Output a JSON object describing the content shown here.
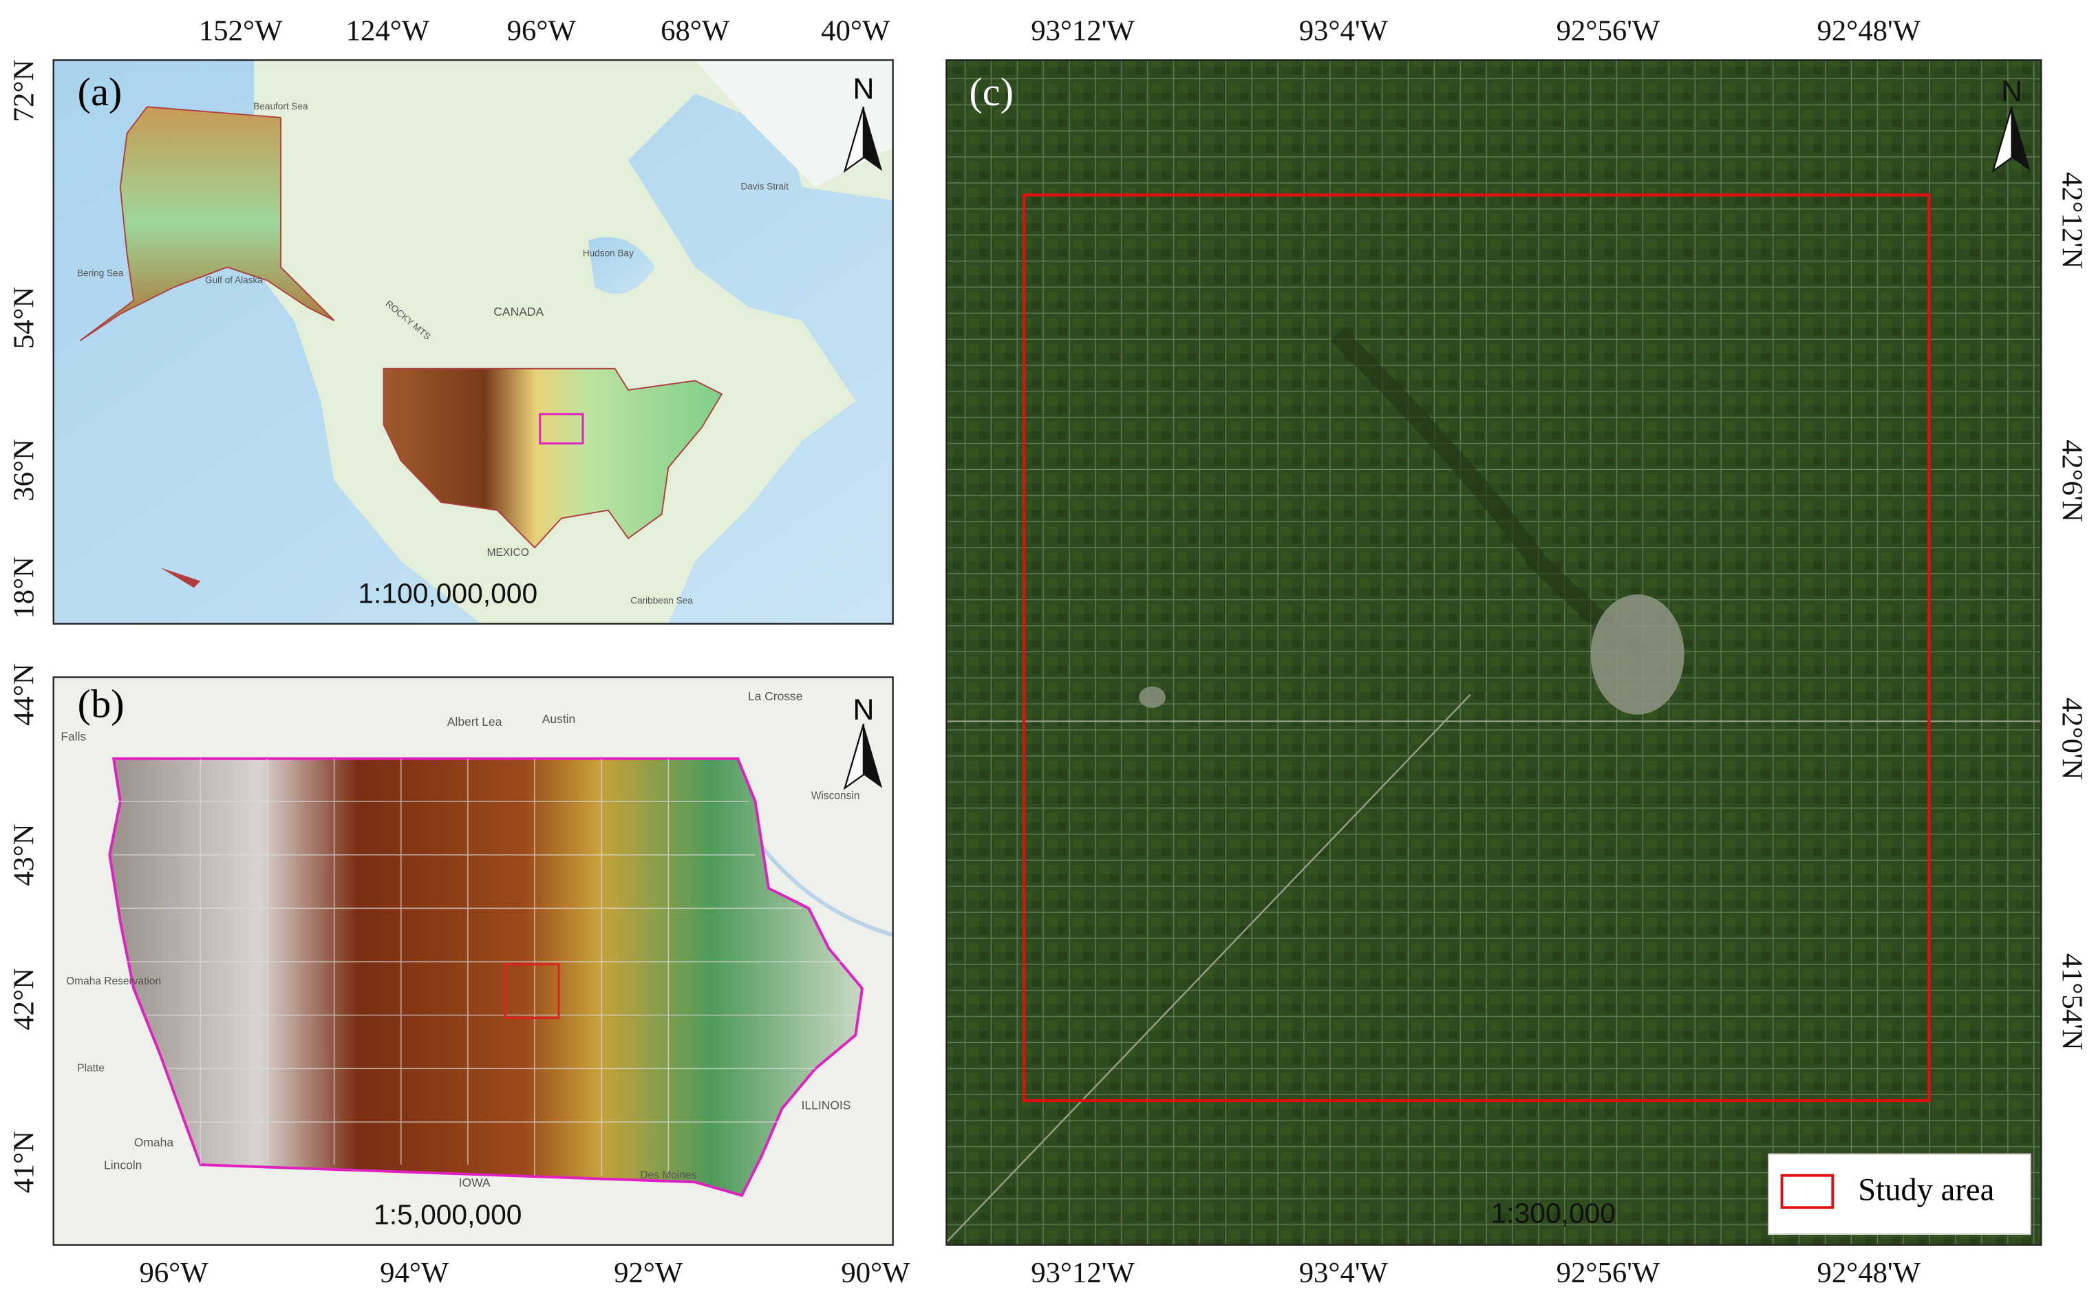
{
  "panels": [
    {
      "label": "(a)",
      "north": "N",
      "scale": "1:100,000,000",
      "top_ticks": [
        "152°W",
        "124°W",
        "96°W",
        "68°W",
        "40°W"
      ],
      "left_ticks": [
        "72°N",
        "54°N",
        "36°N",
        "18°N"
      ],
      "places": [
        "Beaufort Sea",
        "Bering Sea",
        "Gulf of Alaska",
        "CANADA",
        "ROCKY MTS",
        "Hudson Bay",
        "Davis Strait",
        "MEXICO",
        "Caribbean Sea"
      ]
    },
    {
      "label": "(b)",
      "north": "N",
      "scale": "1:5,000,000",
      "bottom_ticks": [
        "96°W",
        "94°W",
        "92°W",
        "90°W"
      ],
      "left_ticks": [
        "44°N",
        "43°N",
        "42°N",
        "41°N"
      ],
      "places": [
        "Falls",
        "Albert Lea",
        "Austin",
        "La Crosse",
        "Wisconsin",
        "Omaha Reservation",
        "Platte",
        "Omaha",
        "Lincoln",
        "IOWA",
        "ILLINOIS",
        "Des Moines"
      ]
    },
    {
      "label": "(c)",
      "north": "N",
      "scale": "1:300,000",
      "top_ticks": [
        "93°12'W",
        "93°4'W",
        "92°56'W",
        "92°48'W"
      ],
      "bottom_ticks": [
        "93°12'W",
        "93°4'W",
        "92°56'W",
        "92°48'W"
      ],
      "right_ticks": [
        "42°12'N",
        "42°6'N",
        "42°0'N",
        "41°54'N"
      ]
    }
  ],
  "legend": {
    "label": "Study area"
  }
}
